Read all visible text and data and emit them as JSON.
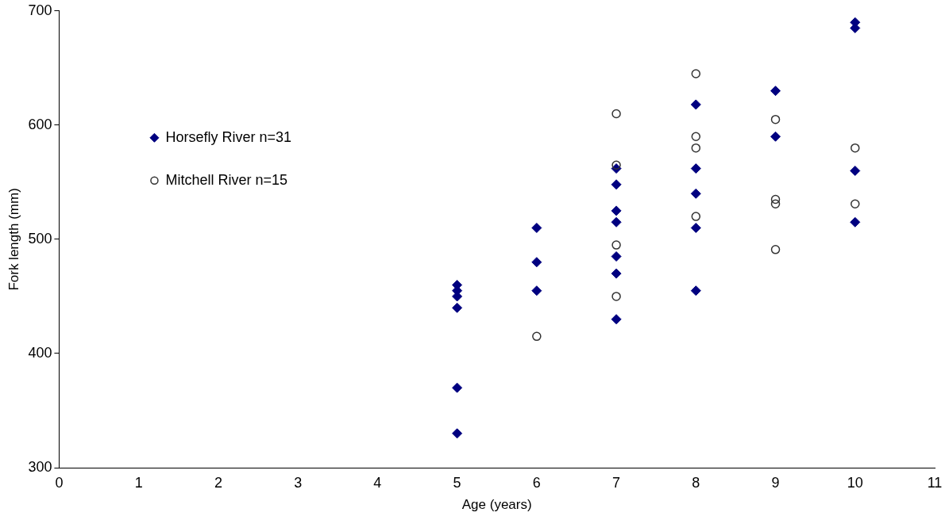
{
  "chart_data": {
    "type": "scatter",
    "xlabel": "Age (years)",
    "ylabel": "Fork length (mm)",
    "xlim": [
      0,
      11
    ],
    "xticks": [
      0,
      1,
      2,
      3,
      4,
      5,
      6,
      7,
      8,
      9,
      10,
      11
    ],
    "ylim": [
      300,
      700
    ],
    "yticks": [
      300,
      400,
      500,
      600,
      700
    ],
    "grid": false,
    "legend": "left",
    "series": [
      {
        "name": "Horsefly River n=31",
        "color": "#000080",
        "marker": "diamond",
        "x": [
          5,
          5,
          5,
          5,
          5,
          5,
          6,
          6,
          6,
          7,
          7,
          7,
          7,
          7,
          7,
          7,
          8,
          8,
          8,
          8,
          8,
          9,
          9,
          10,
          10,
          10,
          10
        ],
        "values": [
          460,
          455,
          450,
          440,
          370,
          330,
          510,
          480,
          455,
          562,
          548,
          525,
          515,
          485,
          470,
          430,
          618,
          562,
          540,
          510,
          455,
          630,
          590,
          690,
          685,
          560,
          515
        ]
      },
      {
        "name": "Mitchell River n=15",
        "color": "#333333",
        "marker": "circle",
        "x": [
          6,
          7,
          7,
          7,
          7,
          8,
          8,
          8,
          8,
          9,
          9,
          9,
          9,
          10,
          10
        ],
        "values": [
          415,
          610,
          565,
          495,
          450,
          645,
          590,
          580,
          520,
          605,
          535,
          531,
          491,
          580,
          531
        ]
      }
    ]
  }
}
